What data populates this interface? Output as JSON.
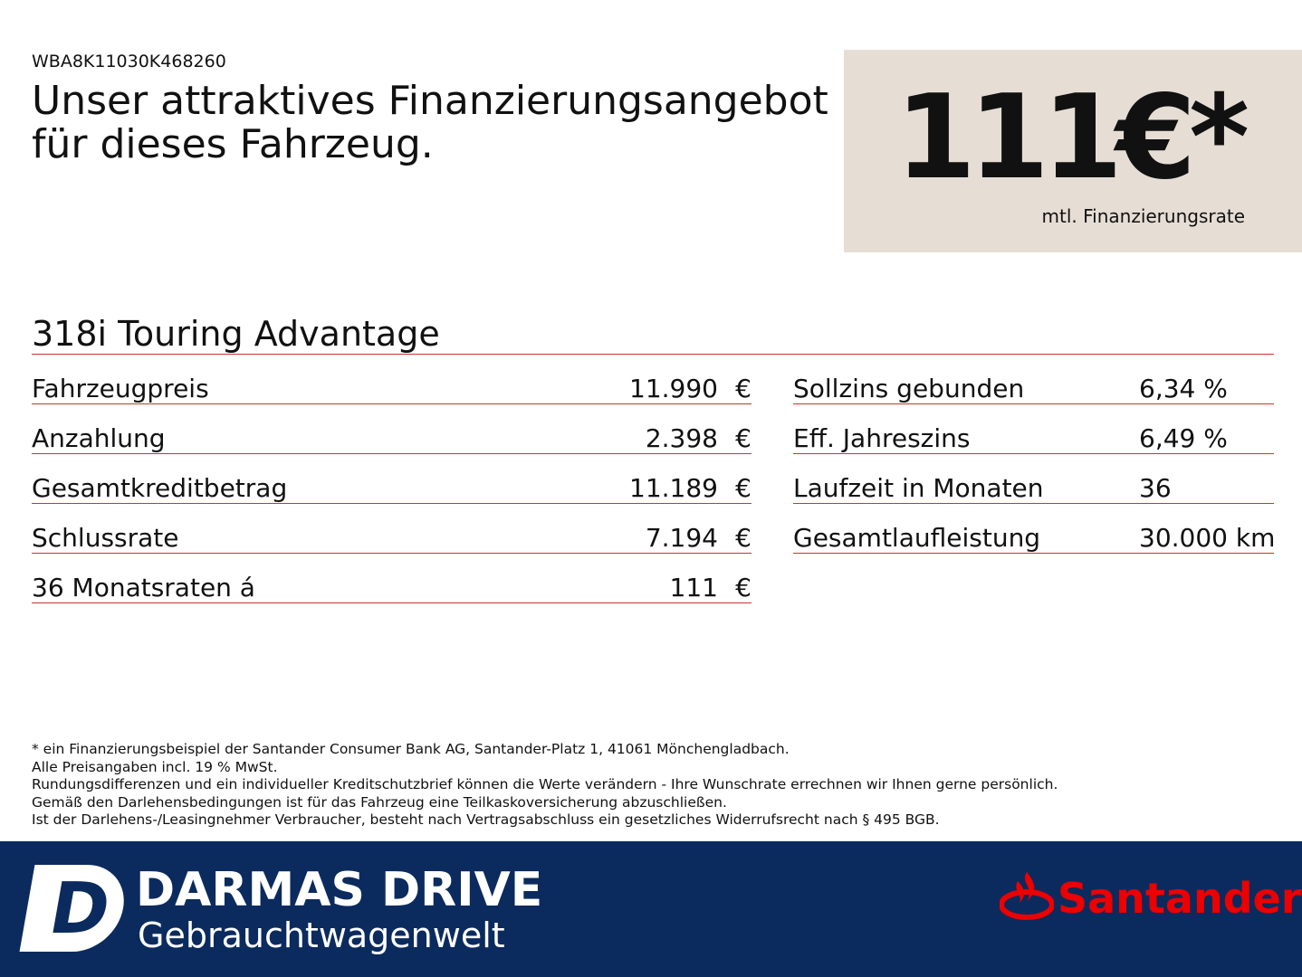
{
  "vin": "WBA8K11030K468260",
  "headline": [
    "Unser attraktives Finanzierungsangebot",
    "für dieses Fahrzeug."
  ],
  "price_box": {
    "price": "111€*",
    "caption": "mtl. Finanzierungsrate"
  },
  "model": "318i Touring Advantage",
  "left_table": {
    "rows": [
      [
        "Fahrzeugpreis",
        "11.990",
        "€"
      ],
      [
        "Anzahlung",
        "2.398",
        "€"
      ],
      [
        "Gesamtkreditbetrag",
        "11.189",
        "€"
      ],
      [
        "Schlussrate",
        "7.194",
        "€"
      ],
      [
        "36 Monatsraten á",
        "111",
        "€"
      ]
    ]
  },
  "right_table": {
    "rows": [
      [
        "Sollzins gebunden",
        "6,34 %"
      ],
      [
        "Eff. Jahreszins",
        "6,49 %"
      ],
      [
        "Laufzeit in Monaten",
        "36"
      ],
      [
        "Gesamtlaufleistung",
        "30.000 km"
      ]
    ]
  },
  "footnotes": [
    "* ein Finanzierungsbeispiel der Santander Consumer Bank AG, Santander-Platz 1, 41061 Mönchengladbach.",
    "Alle Preisangaben incl. 19 % MwSt.",
    "Rundungsdifferenzen und ein individueller Kreditschutzbrief können die Werte verändern - Ihre Wunschrate errechnen wir Ihnen gerne persönlich.",
    "Gemäß den Darlehensbedingungen ist für das Fahrzeug eine Teilkaskoversicherung abzuschließen.",
    "Ist der Darlehens-/Leasingnehmer Verbraucher, besteht nach Vertragsabschluss ein gesetzliches Widerrufsrecht nach § 495 BGB."
  ],
  "footer": {
    "logo_letter": "D",
    "brand": "DARMAS DRIVE",
    "subbrand": "Gebrauchtwagenwelt",
    "partner": "Santander"
  }
}
